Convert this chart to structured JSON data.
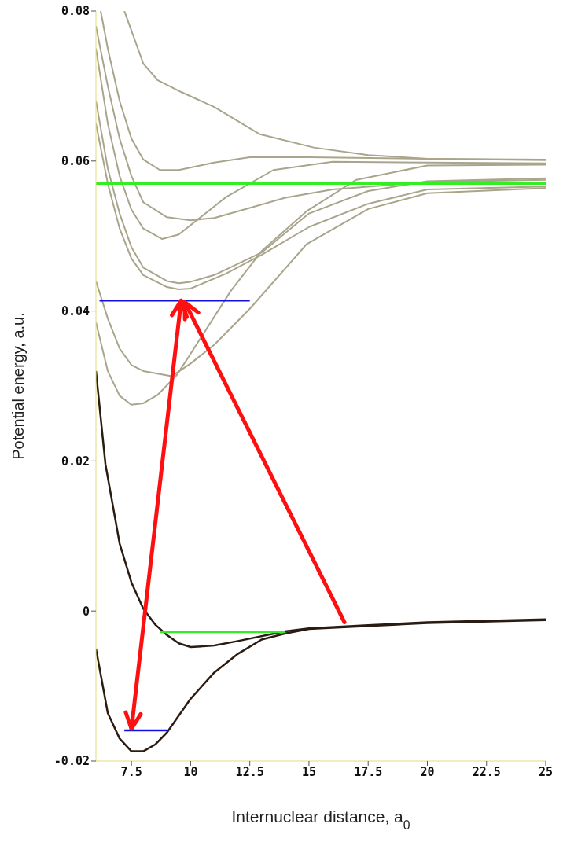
{
  "chart_data": {
    "type": "line",
    "xlabel": "Internuclear distance, a$_{0}$",
    "ylabel": "Potential energy, a.u.",
    "xlim": [
      6,
      25
    ],
    "ylim": [
      -0.02,
      0.08
    ],
    "xticks": [
      7.5,
      10,
      12.5,
      15,
      17.5,
      20,
      22.5,
      25
    ],
    "yticks": [
      -0.02,
      0,
      0.02,
      0.04,
      0.06,
      0.08
    ],
    "marker": "none",
    "line_style": "solid",
    "ref_lines": [
      {
        "axis": "y",
        "value": 0.057,
        "color": "#33ee22"
      }
    ],
    "series": [
      {
        "color": "#2a1c12",
        "x": [
          6,
          6.5,
          7,
          7.5,
          8,
          8.5,
          9,
          10,
          11,
          12,
          13,
          14,
          15,
          17.5,
          20,
          25
        ],
        "values": [
          -0.005,
          -0.0136,
          -0.017,
          -0.0187,
          -0.0187,
          -0.0178,
          -0.0162,
          -0.0117,
          -0.0082,
          -0.0057,
          -0.0038,
          -0.003,
          -0.0024,
          -0.002,
          -0.0016,
          -0.0012
        ]
      },
      {
        "color": "#2a1c12",
        "x": [
          6,
          6.4,
          7,
          7.5,
          8,
          8.5,
          9,
          9.5,
          10,
          11,
          12,
          14,
          15,
          17.5,
          20,
          25
        ],
        "values": [
          0.032,
          0.0196,
          0.009,
          0.0038,
          0.0003,
          -0.0018,
          -0.0032,
          -0.0043,
          -0.0048,
          -0.0046,
          -0.004,
          -0.0027,
          -0.0023,
          -0.0019,
          -0.0015,
          -0.0011
        ]
      },
      {
        "color": "#a9a58c",
        "x": [
          6,
          6.5,
          7,
          7.5,
          8,
          8.6,
          9.4,
          10,
          11.7,
          13,
          14.9,
          17,
          20,
          25
        ],
        "values": [
          0.0385,
          0.032,
          0.0287,
          0.0275,
          0.0277,
          0.0288,
          0.0314,
          0.0343,
          0.0427,
          0.048,
          0.0533,
          0.0575,
          0.0594,
          0.0595
        ]
      },
      {
        "color": "#a9a58c",
        "x": [
          6,
          6.5,
          7,
          7.5,
          8,
          9.2,
          10,
          11,
          12.5,
          14.9,
          17.5,
          20,
          25
        ],
        "values": [
          0.044,
          0.039,
          0.035,
          0.0328,
          0.032,
          0.0313,
          0.033,
          0.0355,
          0.0403,
          0.0489,
          0.0536,
          0.0557,
          0.0564
        ]
      },
      {
        "color": "#a9a58c",
        "x": [
          6,
          6.5,
          7,
          7.5,
          8,
          9,
          9.5,
          10,
          11.5,
          13,
          15,
          17.5,
          20,
          25
        ],
        "values": [
          0.065,
          0.057,
          0.051,
          0.047,
          0.0448,
          0.0432,
          0.0429,
          0.043,
          0.045,
          0.0475,
          0.0512,
          0.0543,
          0.0562,
          0.0566
        ]
      },
      {
        "color": "#a9a58c",
        "x": [
          6,
          6.5,
          7,
          7.5,
          8,
          9,
          9.5,
          10,
          11,
          13,
          15,
          17.5,
          20,
          25
        ],
        "values": [
          0.068,
          0.059,
          0.053,
          0.0485,
          0.0458,
          0.044,
          0.0437,
          0.0439,
          0.0448,
          0.0478,
          0.053,
          0.056,
          0.0573,
          0.0577
        ]
      },
      {
        "color": "#a9a58c",
        "x": [
          6,
          6.5,
          7,
          7.5,
          8,
          8.8,
          9.5,
          11.5,
          13.5,
          16,
          20,
          25
        ],
        "values": [
          0.075,
          0.065,
          0.058,
          0.0535,
          0.051,
          0.0496,
          0.0502,
          0.0552,
          0.0588,
          0.0599,
          0.0598,
          0.0597
        ]
      },
      {
        "color": "#a9a58c",
        "x": [
          6,
          6.5,
          7,
          7.5,
          8,
          9,
          10,
          11,
          12,
          14,
          16,
          20,
          25
        ],
        "values": [
          0.078,
          0.07,
          0.063,
          0.058,
          0.0545,
          0.0525,
          0.0521,
          0.0524,
          0.0533,
          0.0551,
          0.0562,
          0.0572,
          0.0575
        ]
      },
      {
        "color": "#a9a58c",
        "x": [
          6.2,
          6.5,
          7,
          7.5,
          8,
          8.7,
          9.5,
          11,
          12.5,
          15,
          20,
          25
        ],
        "values": [
          0.08,
          0.075,
          0.068,
          0.063,
          0.0602,
          0.0588,
          0.0588,
          0.0598,
          0.0605,
          0.0605,
          0.0603,
          0.0602
        ]
      },
      {
        "color": "#a9a58c",
        "x": [
          7.2,
          8,
          8.6,
          9.6,
          11,
          12.9,
          15.2,
          17.5,
          20,
          25
        ],
        "values": [
          0.08,
          0.073,
          0.0708,
          0.0692,
          0.0672,
          0.0636,
          0.0618,
          0.0608,
          0.0603,
          0.0601
        ]
      },
      {
        "color": "#33ee22",
        "x": [
          8.7,
          14
        ],
        "values": [
          -0.0028,
          -0.0028
        ]
      },
      {
        "color": "#1010e0",
        "x": [
          6.15,
          12.5
        ],
        "values": [
          0.0414,
          0.0414
        ]
      },
      {
        "color": "#1010e0",
        "x": [
          7.2,
          9
        ],
        "values": [
          -0.0159,
          -0.0159
        ]
      }
    ]
  }
}
